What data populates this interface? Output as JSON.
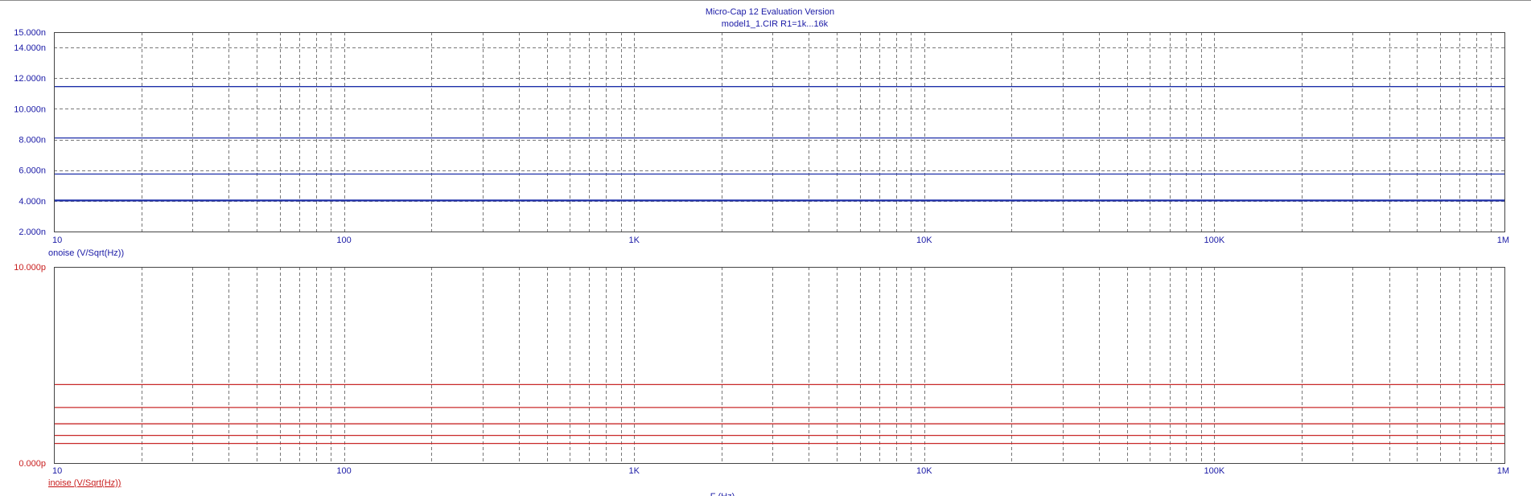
{
  "window": {
    "title": "Micro-Cap 12 Evaluation Version",
    "subtitle": "model1_1.CIR R1=1k...16k"
  },
  "colors": {
    "top_series": "#1c2ea8",
    "bottom_series": "#c82828",
    "axis_text_top": "#1a1aa6",
    "axis_text_bottom": "#c81e1e",
    "grid": "#777777"
  },
  "chart_data": [
    {
      "type": "line",
      "xscale": "log",
      "xlim": [
        10,
        1000000
      ],
      "ylim": [
        2e-09,
        1.5e-08
      ],
      "xticks": [
        {
          "value": 10,
          "label": "10"
        },
        {
          "value": 100,
          "label": "100"
        },
        {
          "value": 1000,
          "label": "1K"
        },
        {
          "value": 10000,
          "label": "10K"
        },
        {
          "value": 100000,
          "label": "100K"
        },
        {
          "value": 1000000,
          "label": "1M"
        }
      ],
      "yticks": [
        {
          "value": 2e-09,
          "label": "2.000n"
        },
        {
          "value": 4e-09,
          "label": "4.000n"
        },
        {
          "value": 6e-09,
          "label": "6.000n"
        },
        {
          "value": 8e-09,
          "label": "8.000n"
        },
        {
          "value": 1e-08,
          "label": "10.000n"
        },
        {
          "value": 1.2e-08,
          "label": "12.000n"
        },
        {
          "value": 1.4e-08,
          "label": "14.000n"
        },
        {
          "value": 1.5e-08,
          "label": "15.000n"
        }
      ],
      "ylabel": "onoise (V/Sqrt(Hz))",
      "grid": true,
      "series": [
        {
          "x": [
            10,
            1000000
          ],
          "values": [
            1.145e-08,
            1.145e-08
          ]
        },
        {
          "x": [
            10,
            1000000
          ],
          "values": [
            8.1e-09,
            8.1e-09
          ]
        },
        {
          "x": [
            10,
            1000000
          ],
          "values": [
            5.75e-09,
            5.75e-09
          ]
        },
        {
          "x": [
            10,
            1000000
          ],
          "values": [
            4.05e-09,
            4.05e-09
          ]
        },
        {
          "x": [
            10,
            1000000
          ],
          "values": [
            4e-09,
            4e-09
          ]
        }
      ]
    },
    {
      "type": "line",
      "xscale": "log",
      "xlim": [
        10,
        1000000
      ],
      "ylim": [
        0,
        1e-11
      ],
      "xticks": [
        {
          "value": 10,
          "label": "10"
        },
        {
          "value": 100,
          "label": "100"
        },
        {
          "value": 1000,
          "label": "1K"
        },
        {
          "value": 10000,
          "label": "10K"
        },
        {
          "value": 100000,
          "label": "100K"
        },
        {
          "value": 1000000,
          "label": "1M"
        }
      ],
      "yticks": [
        {
          "value": 0,
          "label": "0.000p"
        },
        {
          "value": 1e-11,
          "label": "10.000p"
        }
      ],
      "ylabel": "inoise (V/Sqrt(Hz))",
      "xlabel": "F (Hz)",
      "grid": true,
      "series": [
        {
          "x": [
            10,
            1000000
          ],
          "values": [
            4e-12,
            4e-12
          ]
        },
        {
          "x": [
            10,
            1000000
          ],
          "values": [
            2.83e-12,
            2.83e-12
          ]
        },
        {
          "x": [
            10,
            1000000
          ],
          "values": [
            2e-12,
            2e-12
          ]
        },
        {
          "x": [
            10,
            1000000
          ],
          "values": [
            1.41e-12,
            1.41e-12
          ]
        },
        {
          "x": [
            10,
            1000000
          ],
          "values": [
            1e-12,
            1e-12
          ]
        }
      ]
    }
  ]
}
